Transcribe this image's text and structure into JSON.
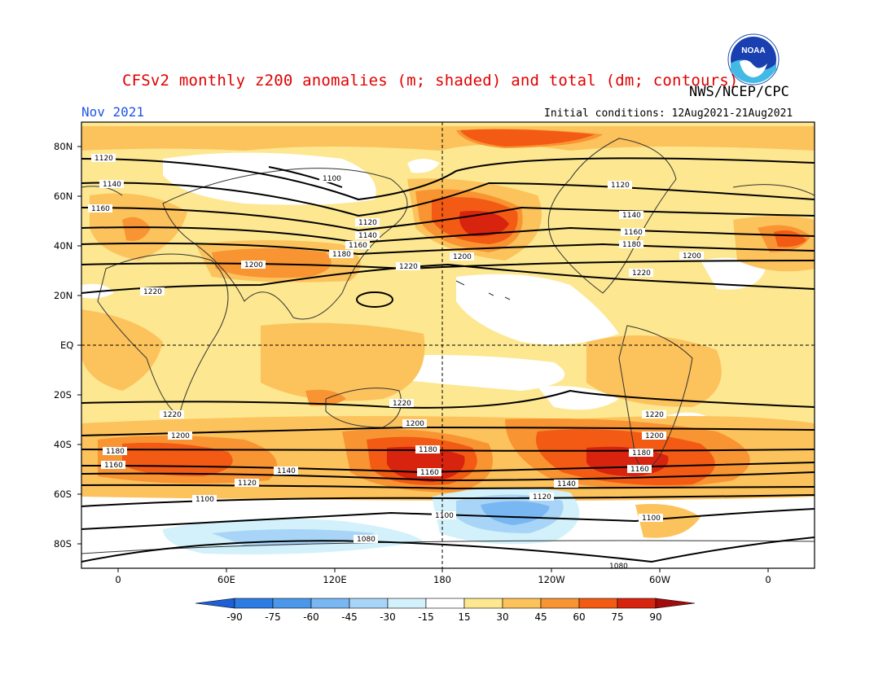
{
  "header": {
    "title": "CFSv2 monthly z200 anomalies (m; shaded) and total (dm; contours)",
    "agency": "NWS/NCEP/CPC",
    "month": "Nov 2021",
    "initial_conditions": "Initial conditions: 12Aug2021-21Aug2021",
    "logo_text": "NOAA"
  },
  "axes": {
    "lat_labels": [
      "80N",
      "60N",
      "40N",
      "20N",
      "EQ",
      "20S",
      "40S",
      "60S",
      "80S"
    ],
    "lon_labels": [
      "0",
      "60E",
      "120E",
      "180",
      "120W",
      "60W",
      "0"
    ]
  },
  "colorbar": {
    "ticks": [
      "-90",
      "-75",
      "-60",
      "-45",
      "-30",
      "-15",
      "15",
      "30",
      "45",
      "60",
      "75",
      "90"
    ],
    "colors": [
      "#1c5fd6",
      "#2d7ce4",
      "#4b97ea",
      "#79b7f2",
      "#a8d5f7",
      "#d2f1fa",
      "#ffffff",
      "#fde790",
      "#fcc25c",
      "#f89432",
      "#f35a14",
      "#d8230f",
      "#a30b0b"
    ]
  },
  "contours": [
    {
      "value": "1120",
      "lat": "far-north"
    },
    {
      "value": "1100",
      "lat": "polar-north"
    },
    {
      "value": "1140",
      "lat": "high-north"
    },
    {
      "value": "1160",
      "lat": "mid-north"
    },
    {
      "value": "1180",
      "lat": "mid-north"
    },
    {
      "value": "1200",
      "lat": "subtropical-north"
    },
    {
      "value": "1220",
      "lat": "tropical-north"
    },
    {
      "value": "1220",
      "lat": "tropical-south"
    },
    {
      "value": "1200",
      "lat": "subtropical-south"
    },
    {
      "value": "1180",
      "lat": "mid-south"
    },
    {
      "value": "1160",
      "lat": "mid-south"
    },
    {
      "value": "1140",
      "lat": "mid-south"
    },
    {
      "value": "1120",
      "lat": "high-south"
    },
    {
      "value": "1100",
      "lat": "high-south"
    },
    {
      "value": "1080",
      "lat": "polar-south"
    }
  ],
  "contour_labels": [
    "1120",
    "1140",
    "1160",
    "1180",
    "1100",
    "1200",
    "1220",
    "1080"
  ]
}
